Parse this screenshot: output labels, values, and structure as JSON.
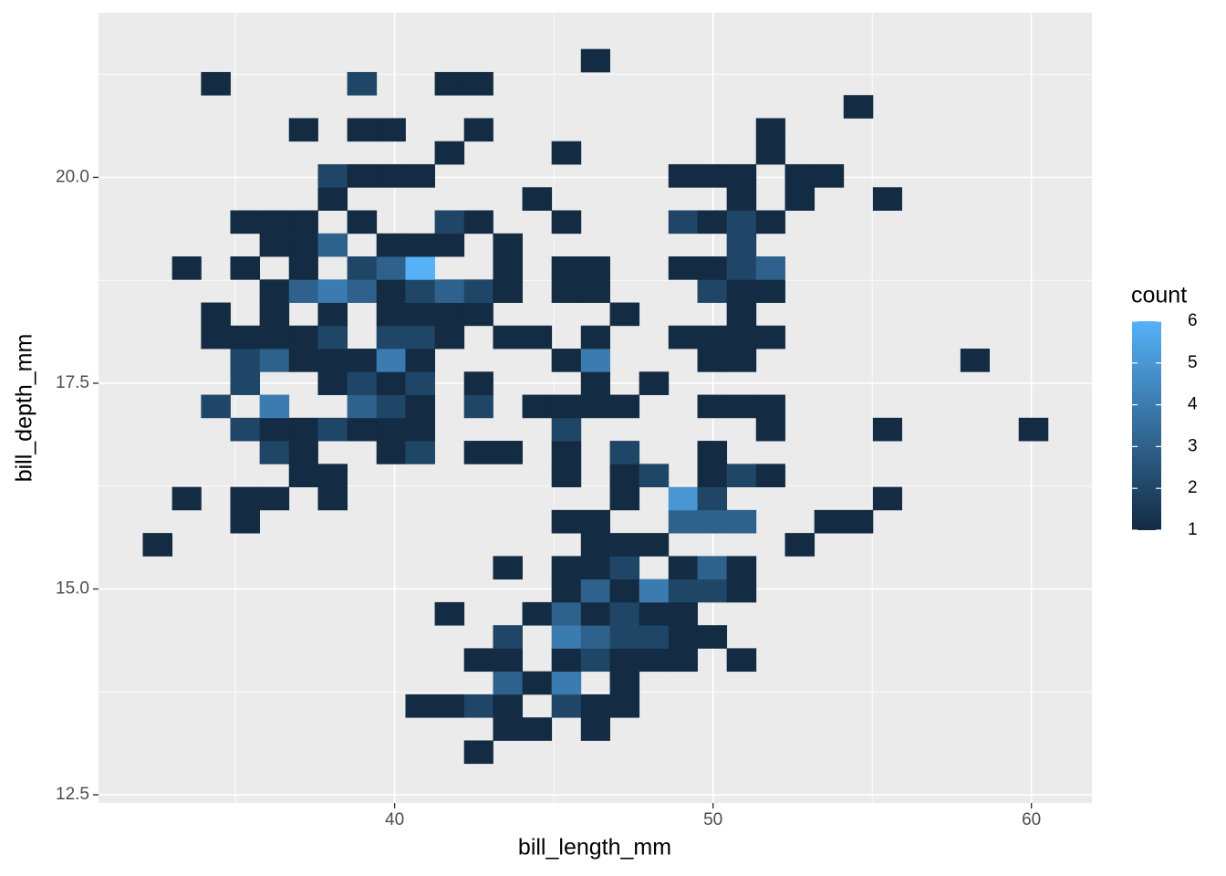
{
  "chart_data": {
    "type": "bin2d",
    "x_label": "bill_length_mm",
    "y_label": "bill_depth_mm",
    "xlim": [
      30.7,
      61.9
    ],
    "ylim": [
      12.4,
      22.0
    ],
    "xticks": [
      40,
      50,
      60
    ],
    "yticks": [
      12.5,
      {
        "value": 15,
        "label": "15.0"
      },
      17.5,
      {
        "value": 20,
        "label": "20.0"
      }
    ],
    "xminor": [
      35,
      45,
      55
    ],
    "yminor": [
      13.75,
      16.25,
      18.75,
      21.25
    ],
    "grid": true,
    "low_color": "#132B43",
    "high_color": "#56B1F7",
    "legend": {
      "title": "count",
      "limits": [
        1,
        6
      ],
      "ticks": [
        1,
        2,
        3,
        4,
        5,
        6
      ],
      "position": "right"
    },
    "xbins": [
      32.09,
      33.01,
      33.92,
      34.84,
      35.76,
      36.68,
      37.59,
      38.51,
      39.43,
      40.34,
      41.26,
      42.18,
      43.09,
      44.01,
      44.93,
      45.85,
      46.76,
      47.68,
      48.6,
      49.51,
      50.43,
      51.35,
      52.26,
      53.18,
      54.1,
      55.02,
      55.93,
      56.85,
      57.77,
      58.68,
      59.6,
      60.52
    ],
    "ybins": [
      12.88,
      13.16,
      13.44,
      13.72,
      14.0,
      14.28,
      14.56,
      14.84,
      15.12,
      15.4,
      15.68,
      15.96,
      16.24,
      16.52,
      16.8,
      17.08,
      17.36,
      17.64,
      17.92,
      18.2,
      18.48,
      18.76,
      19.04,
      19.32,
      19.6,
      19.88,
      20.16,
      20.44,
      20.72,
      21.0,
      21.28,
      21.56
    ],
    "counts": [
      [
        null,
        null,
        null,
        null,
        null,
        null,
        null,
        null,
        null,
        null,
        null,
        1,
        null,
        null,
        null,
        null,
        null,
        null,
        null,
        null,
        null,
        null,
        null,
        null,
        null,
        null,
        null,
        null,
        null,
        null,
        null
      ],
      [
        null,
        null,
        null,
        null,
        null,
        null,
        null,
        null,
        null,
        null,
        null,
        null,
        1,
        1,
        null,
        1,
        null,
        null,
        null,
        null,
        null,
        null,
        null,
        null,
        null,
        null,
        null,
        null,
        null,
        null,
        null
      ],
      [
        null,
        null,
        null,
        null,
        null,
        null,
        null,
        null,
        null,
        1,
        1,
        2,
        1,
        null,
        2,
        1,
        1,
        null,
        null,
        null,
        null,
        null,
        null,
        null,
        null,
        null,
        null,
        null,
        null,
        null,
        null
      ],
      [
        null,
        null,
        null,
        null,
        null,
        null,
        null,
        null,
        null,
        null,
        null,
        null,
        3,
        1,
        4,
        null,
        1,
        null,
        null,
        null,
        null,
        null,
        null,
        null,
        null,
        null,
        null,
        null,
        null,
        null,
        null
      ],
      [
        null,
        null,
        null,
        null,
        null,
        null,
        null,
        null,
        null,
        null,
        null,
        1,
        1,
        null,
        1,
        2,
        1,
        1,
        1,
        null,
        1,
        null,
        null,
        null,
        null,
        null,
        null,
        null,
        null,
        null,
        null
      ],
      [
        null,
        null,
        null,
        null,
        null,
        null,
        null,
        null,
        null,
        null,
        null,
        null,
        2,
        null,
        4,
        3,
        2,
        2,
        1,
        1,
        null,
        null,
        null,
        null,
        null,
        null,
        null,
        null,
        null,
        null,
        null
      ],
      [
        null,
        null,
        null,
        null,
        null,
        null,
        null,
        null,
        null,
        null,
        1,
        null,
        null,
        1,
        3,
        1,
        2,
        1,
        1,
        null,
        null,
        null,
        null,
        null,
        null,
        null,
        null,
        null,
        null,
        null,
        null
      ],
      [
        null,
        null,
        null,
        null,
        null,
        null,
        null,
        null,
        null,
        null,
        null,
        null,
        null,
        null,
        1,
        3,
        1,
        4,
        2,
        2,
        1,
        null,
        null,
        null,
        null,
        null,
        null,
        null,
        null,
        null,
        null
      ],
      [
        null,
        null,
        null,
        null,
        null,
        null,
        null,
        null,
        null,
        null,
        null,
        null,
        1,
        null,
        1,
        1,
        2,
        null,
        1,
        3,
        1,
        null,
        null,
        null,
        null,
        null,
        null,
        null,
        null,
        null,
        null
      ],
      [
        1,
        null,
        null,
        null,
        null,
        null,
        null,
        null,
        null,
        null,
        null,
        null,
        null,
        null,
        null,
        1,
        1,
        1,
        null,
        null,
        null,
        null,
        1,
        null,
        null,
        null,
        null,
        null,
        null,
        null,
        null
      ],
      [
        null,
        null,
        null,
        1,
        null,
        null,
        null,
        null,
        null,
        null,
        null,
        null,
        null,
        null,
        1,
        1,
        null,
        null,
        3,
        3,
        3,
        null,
        null,
        1,
        1,
        null,
        null,
        null,
        null,
        null,
        null
      ],
      [
        null,
        1,
        null,
        1,
        1,
        null,
        1,
        null,
        null,
        null,
        null,
        null,
        null,
        null,
        null,
        null,
        1,
        null,
        5,
        2,
        null,
        null,
        null,
        null,
        null,
        1,
        null,
        null,
        null,
        null,
        null
      ],
      [
        null,
        null,
        null,
        null,
        null,
        1,
        1,
        null,
        null,
        null,
        null,
        null,
        null,
        null,
        1,
        null,
        1,
        2,
        null,
        1,
        2,
        1,
        null,
        null,
        null,
        null,
        null,
        null,
        null,
        null,
        null
      ],
      [
        null,
        null,
        null,
        null,
        2,
        1,
        null,
        null,
        1,
        2,
        null,
        1,
        1,
        null,
        1,
        null,
        2,
        null,
        null,
        1,
        null,
        null,
        null,
        null,
        null,
        null,
        null,
        null,
        null,
        null,
        null
      ],
      [
        null,
        null,
        null,
        2,
        1,
        1,
        2,
        1,
        1,
        1,
        null,
        null,
        null,
        null,
        2,
        null,
        null,
        null,
        null,
        null,
        null,
        1,
        null,
        null,
        null,
        1,
        null,
        null,
        null,
        null,
        1
      ],
      [
        null,
        null,
        2,
        null,
        4,
        null,
        null,
        3,
        2,
        1,
        null,
        2,
        null,
        1,
        1,
        1,
        1,
        null,
        null,
        1,
        1,
        1,
        null,
        null,
        null,
        null,
        null,
        null,
        null,
        null,
        null
      ],
      [
        null,
        null,
        null,
        2,
        null,
        null,
        1,
        2,
        1,
        2,
        null,
        1,
        null,
        null,
        null,
        1,
        null,
        1,
        null,
        null,
        null,
        null,
        null,
        null,
        null,
        null,
        null,
        null,
        null,
        null,
        null
      ],
      [
        null,
        null,
        null,
        2,
        3,
        1,
        1,
        1,
        4,
        1,
        null,
        null,
        null,
        null,
        1,
        4,
        null,
        null,
        null,
        1,
        1,
        null,
        null,
        null,
        null,
        null,
        null,
        null,
        1,
        null,
        null
      ],
      [
        null,
        null,
        1,
        1,
        1,
        1,
        2,
        null,
        2,
        2,
        1,
        null,
        1,
        1,
        null,
        1,
        null,
        null,
        1,
        1,
        1,
        1,
        null,
        null,
        null,
        null,
        null,
        null,
        null,
        null,
        null
      ],
      [
        null,
        null,
        1,
        null,
        1,
        null,
        1,
        null,
        1,
        1,
        1,
        1,
        null,
        null,
        null,
        null,
        1,
        null,
        null,
        null,
        1,
        null,
        null,
        null,
        null,
        null,
        null,
        null,
        null,
        null,
        null
      ],
      [
        null,
        null,
        null,
        null,
        1,
        3,
        4,
        3,
        1,
        2,
        3,
        2,
        1,
        null,
        1,
        1,
        null,
        null,
        null,
        2,
        1,
        1,
        null,
        null,
        null,
        null,
        null,
        null,
        null,
        null,
        null
      ],
      [
        null,
        1,
        null,
        1,
        null,
        1,
        null,
        2,
        3,
        6,
        null,
        null,
        1,
        null,
        1,
        1,
        null,
        null,
        1,
        1,
        2,
        3,
        null,
        null,
        null,
        null,
        null,
        null,
        null,
        null,
        null
      ],
      [
        null,
        null,
        null,
        null,
        1,
        1,
        3,
        null,
        1,
        1,
        1,
        null,
        1,
        null,
        null,
        null,
        null,
        null,
        null,
        null,
        2,
        null,
        null,
        null,
        null,
        null,
        null,
        null,
        null,
        null,
        null
      ],
      [
        null,
        null,
        null,
        1,
        1,
        1,
        null,
        1,
        null,
        null,
        2,
        1,
        null,
        null,
        1,
        null,
        null,
        null,
        2,
        1,
        2,
        1,
        null,
        null,
        null,
        null,
        null,
        null,
        null,
        null,
        null
      ],
      [
        null,
        null,
        null,
        null,
        null,
        null,
        1,
        null,
        null,
        null,
        null,
        null,
        null,
        1,
        null,
        null,
        null,
        null,
        null,
        null,
        1,
        null,
        1,
        null,
        null,
        1,
        null,
        null,
        null,
        null,
        null
      ],
      [
        null,
        null,
        null,
        null,
        null,
        null,
        2,
        1,
        1,
        1,
        null,
        null,
        null,
        null,
        null,
        null,
        null,
        null,
        1,
        1,
        1,
        null,
        1,
        1,
        null,
        null,
        null,
        null,
        null,
        null,
        null
      ],
      [
        null,
        null,
        null,
        null,
        null,
        null,
        null,
        null,
        null,
        null,
        1,
        null,
        null,
        null,
        1,
        null,
        null,
        null,
        null,
        null,
        null,
        1,
        null,
        null,
        null,
        null,
        null,
        null,
        null,
        null,
        null
      ],
      [
        null,
        null,
        null,
        null,
        null,
        1,
        null,
        1,
        1,
        null,
        null,
        1,
        null,
        null,
        null,
        null,
        null,
        null,
        null,
        null,
        null,
        1,
        null,
        null,
        null,
        null,
        null,
        null,
        null,
        null,
        null
      ],
      [
        null,
        null,
        null,
        null,
        null,
        null,
        null,
        null,
        null,
        null,
        null,
        null,
        null,
        null,
        null,
        null,
        null,
        null,
        null,
        null,
        null,
        null,
        null,
        null,
        1,
        null,
        null,
        null,
        null,
        null,
        null
      ],
      [
        null,
        null,
        1,
        null,
        null,
        null,
        null,
        2,
        null,
        null,
        1,
        1,
        null,
        null,
        null,
        null,
        null,
        null,
        null,
        null,
        null,
        null,
        null,
        null,
        null,
        null,
        null,
        null,
        null,
        null,
        null
      ],
      [
        null,
        null,
        null,
        null,
        null,
        null,
        null,
        null,
        null,
        null,
        null,
        null,
        null,
        null,
        null,
        1,
        null,
        null,
        null,
        null,
        null,
        null,
        null,
        null,
        null,
        null,
        null,
        null,
        null,
        null,
        null
      ]
    ]
  }
}
